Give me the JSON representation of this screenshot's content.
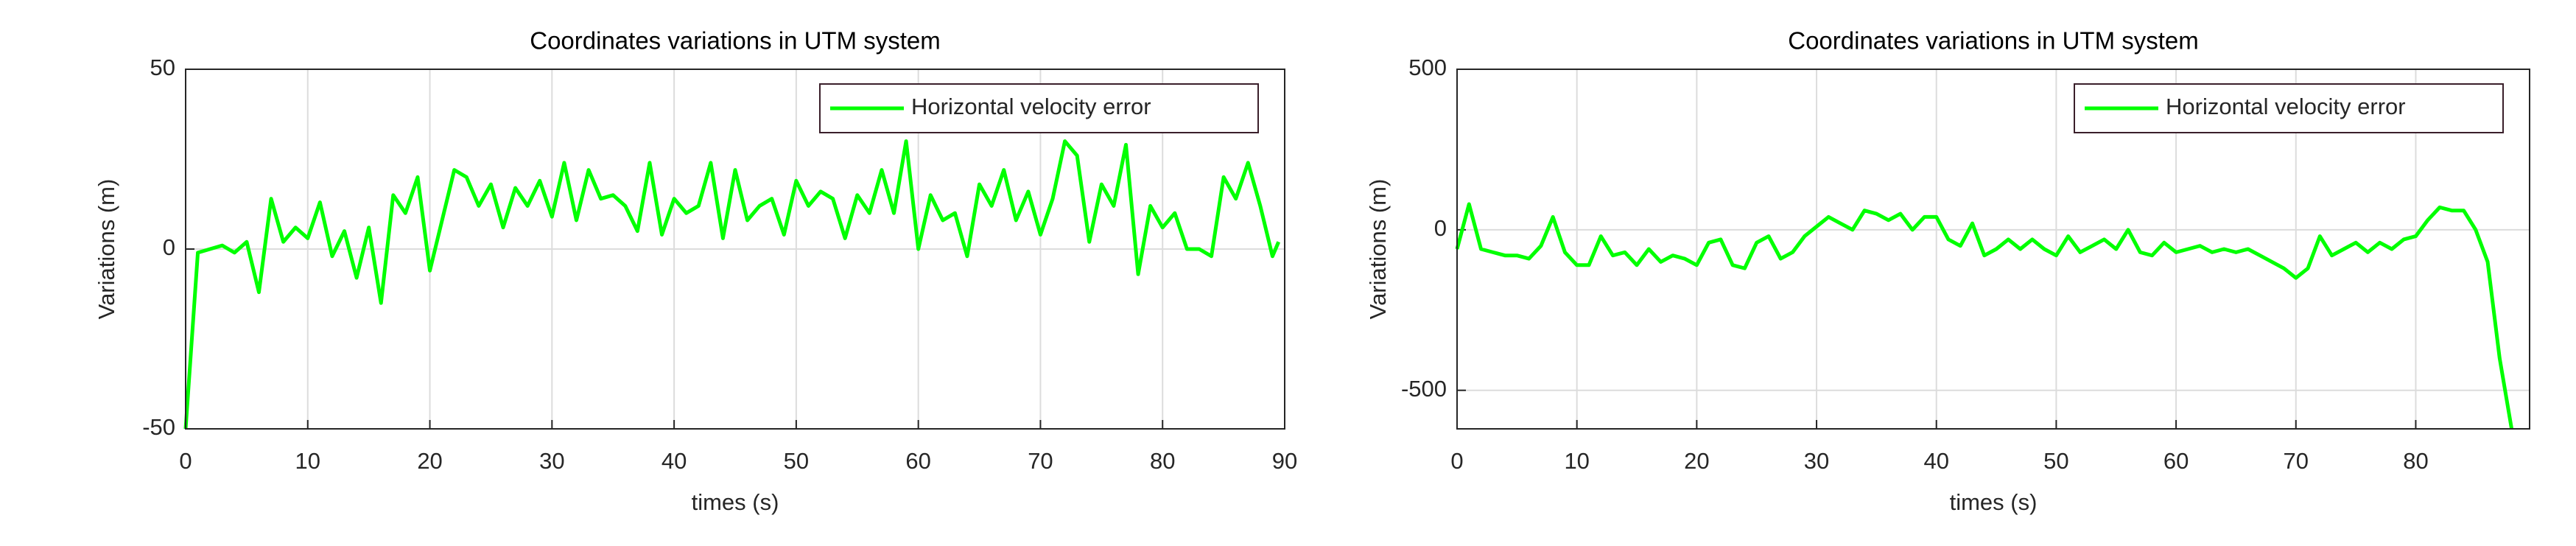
{
  "chart_data": [
    {
      "type": "line",
      "title": "Coordinates variations in UTM system",
      "x_label": "times (s)",
      "y_label": "Variations (m)",
      "xlim": [
        0,
        90
      ],
      "xticks": [
        0,
        10,
        20,
        30,
        40,
        50,
        60,
        70,
        80,
        90
      ],
      "ylim": [
        -50,
        50
      ],
      "yticks": [
        -50,
        0,
        50
      ],
      "grid": true,
      "legend": "upper right",
      "x": [
        0,
        1,
        2,
        3,
        4,
        5,
        6,
        7,
        8,
        9,
        10,
        11,
        12,
        13,
        14,
        15,
        16,
        17,
        18,
        19,
        20,
        21,
        22,
        23,
        24,
        25,
        26,
        27,
        28,
        29,
        30,
        31,
        32,
        33,
        34,
        35,
        36,
        37,
        38,
        39,
        40,
        41,
        42,
        43,
        44,
        45,
        46,
        47,
        48,
        49,
        50,
        51,
        52,
        53,
        54,
        55,
        56,
        57,
        58,
        59,
        60,
        61,
        62,
        63,
        64,
        65,
        66,
        67,
        68,
        69,
        70,
        71,
        72,
        73,
        74,
        75,
        76,
        77,
        78,
        79,
        80,
        81,
        82,
        83,
        84,
        85,
        86,
        87,
        88,
        89,
        89.5
      ],
      "series": [
        {
          "name": "Horizontal velocity error",
          "color": "#00ff00",
          "values": [
            -50,
            -1,
            0,
            1,
            -1,
            2,
            -12,
            14,
            2,
            6,
            3,
            13,
            -2,
            5,
            -8,
            6,
            -15,
            15,
            10,
            20,
            -6,
            8,
            22,
            20,
            12,
            18,
            6,
            17,
            12,
            19,
            9,
            24,
            8,
            22,
            14,
            15,
            12,
            5,
            24,
            4,
            14,
            10,
            12,
            24,
            3,
            22,
            8,
            12,
            14,
            4,
            19,
            12,
            16,
            14,
            3,
            15,
            10,
            22,
            10,
            30,
            0,
            15,
            8,
            10,
            -2,
            18,
            12,
            22,
            8,
            16,
            4,
            14,
            30,
            26,
            2,
            18,
            12,
            29,
            -7,
            12,
            6,
            10,
            0,
            0,
            -2,
            20,
            14,
            24,
            12,
            -2,
            2
          ]
        }
      ]
    },
    {
      "type": "line",
      "title": "Coordinates variations in UTM system",
      "x_label": "times (s)",
      "y_label": "Variations (m)",
      "xlim": [
        0,
        89.5
      ],
      "xticks": [
        0,
        10,
        20,
        30,
        40,
        50,
        60,
        70,
        80
      ],
      "ylim": [
        -620,
        500
      ],
      "yticks": [
        -500,
        0,
        500
      ],
      "grid": true,
      "legend": "upper right",
      "x": [
        0,
        1,
        2,
        3,
        4,
        5,
        6,
        7,
        8,
        9,
        10,
        11,
        12,
        13,
        14,
        15,
        16,
        17,
        18,
        19,
        20,
        21,
        22,
        23,
        24,
        25,
        26,
        27,
        28,
        29,
        30,
        31,
        32,
        33,
        34,
        35,
        36,
        37,
        38,
        39,
        40,
        41,
        42,
        43,
        44,
        45,
        46,
        47,
        48,
        49,
        50,
        51,
        52,
        53,
        54,
        55,
        56,
        57,
        58,
        59,
        60,
        61,
        62,
        63,
        64,
        65,
        66,
        67,
        68,
        69,
        70,
        71,
        72,
        73,
        74,
        75,
        76,
        77,
        78,
        79,
        80,
        81,
        82,
        83,
        84,
        85,
        86,
        87,
        88
      ],
      "series": [
        {
          "name": "Horizontal velocity error",
          "color": "#00ff00",
          "values": [
            -60,
            80,
            -60,
            -70,
            -80,
            -80,
            -90,
            -50,
            40,
            -70,
            -110,
            -110,
            -20,
            -80,
            -70,
            -110,
            -60,
            -100,
            -80,
            -90,
            -110,
            -40,
            -30,
            -110,
            -120,
            -40,
            -20,
            -90,
            -70,
            -20,
            10,
            40,
            20,
            0,
            60,
            50,
            30,
            50,
            0,
            40,
            40,
            -30,
            -50,
            20,
            -80,
            -60,
            -30,
            -60,
            -30,
            -60,
            -80,
            -20,
            -70,
            -50,
            -30,
            -60,
            0,
            -70,
            -80,
            -40,
            -70,
            -60,
            -50,
            -70,
            -60,
            -70,
            -60,
            -80,
            -100,
            -120,
            -150,
            -120,
            -20,
            -80,
            -60,
            -40,
            -70,
            -40,
            -60,
            -30,
            -20,
            30,
            70,
            60,
            60,
            0,
            -100,
            -400,
            -620
          ]
        }
      ]
    }
  ]
}
